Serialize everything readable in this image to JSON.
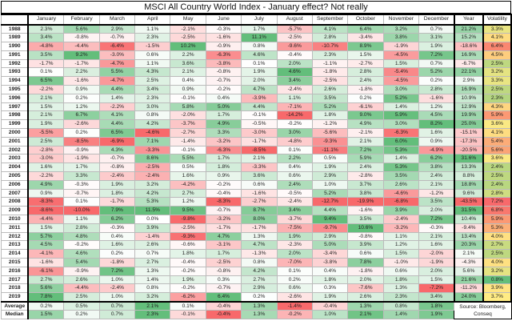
{
  "chart_data": {
    "type": "table",
    "title": "MSCI All Country World Index - January effect? Not really",
    "columns": [
      "",
      "January",
      "February",
      "March",
      "April",
      "May",
      "June",
      "July",
      "August",
      "September",
      "October",
      "November",
      "December",
      "Year",
      "Volatility"
    ],
    "rows": [
      {
        "year": "1988",
        "months": [
          "2.3%",
          "5.6%",
          "2.9%",
          "1.1%",
          "-2.1%",
          "-0.3%",
          "1.7%",
          "-5.7%",
          "4.1%",
          "6.4%",
          "3.2%",
          "0.7%"
        ],
        "annual": "21.2%",
        "volatility": "3.3%"
      },
      {
        "year": "1989",
        "months": [
          "3.4%",
          "-0.8%",
          "-0.7%",
          "2.3%",
          "-2.5%",
          "-1.6%",
          "11.1%",
          "-2.5%",
          "2.8%",
          "-3.4%",
          "3.8%",
          "3.1%"
        ],
        "annual": "15.2%",
        "volatility": "4.1%"
      },
      {
        "year": "1990",
        "months": [
          "-4.8%",
          "-4.4%",
          "-6.4%",
          "-1.5%",
          "10.2%",
          "-0.9%",
          "0.8%",
          "-9.6%",
          "-10.7%",
          "8.9%",
          "-1.9%",
          "1.9%"
        ],
        "annual": "-18.6%",
        "volatility": "6.4%"
      },
      {
        "year": "1991",
        "months": [
          "3.5%",
          "9.2%",
          "-3.0%",
          "0.6%",
          "2.2%",
          "-6.3%",
          "4.6%",
          "-0.4%",
          "2.3%",
          "1.5%",
          "-4.5%",
          "7.2%"
        ],
        "annual": "16.9%",
        "volatility": "4.5%"
      },
      {
        "year": "1992",
        "months": [
          "-1.7%",
          "-1.7%",
          "-4.7%",
          "1.1%",
          "3.6%",
          "-3.8%",
          "0.1%",
          "2.0%",
          "-1.1%",
          "-2.7%",
          "1.5%",
          "0.7%"
        ],
        "annual": "-6.7%",
        "volatility": "2.5%"
      },
      {
        "year": "1993",
        "months": [
          "0.1%",
          "2.2%",
          "5.5%",
          "4.3%",
          "2.1%",
          "-0.8%",
          "1.9%",
          "4.6%",
          "-1.8%",
          "2.8%",
          "-5.4%",
          "5.2%"
        ],
        "annual": "22.1%",
        "volatility": "3.2%"
      },
      {
        "year": "1994",
        "months": [
          "6.5%",
          "-1.6%",
          "-4.7%",
          "2.5%",
          "0.4%",
          "-0.7%",
          "2.0%",
          "3.4%",
          "-2.5%",
          "2.4%",
          "-4.5%",
          "0.2%"
        ],
        "annual": "2.9%",
        "volatility": "3.3%"
      },
      {
        "year": "1995",
        "months": [
          "-2.2%",
          "0.9%",
          "4.4%",
          "3.4%",
          "0.9%",
          "-0.2%",
          "4.7%",
          "-2.4%",
          "2.6%",
          "-1.8%",
          "3.0%",
          "2.8%"
        ],
        "annual": "16.9%",
        "volatility": "2.5%"
      },
      {
        "year": "1996",
        "months": [
          "2.1%",
          "0.2%",
          "1.4%",
          "2.3%",
          "-0.1%",
          "0.4%",
          "-3.9%",
          "1.1%",
          "3.5%",
          "0.2%",
          "5.2%",
          "-1.6%"
        ],
        "annual": "10.9%",
        "volatility": "2.3%"
      },
      {
        "year": "1997",
        "months": [
          "1.5%",
          "1.2%",
          "-2.2%",
          "3.0%",
          "5.8%",
          "5.0%",
          "4.4%",
          "-7.1%",
          "5.2%",
          "-6.1%",
          "1.4%",
          "1.2%"
        ],
        "annual": "12.9%",
        "volatility": "4.3%"
      },
      {
        "year": "1998",
        "months": [
          "2.1%",
          "6.7%",
          "4.1%",
          "0.8%",
          "-2.0%",
          "1.7%",
          "-0.1%",
          "-14.2%",
          "1.8%",
          "9.0%",
          "5.9%",
          "4.5%"
        ],
        "annual": "19.9%",
        "volatility": "5.9%"
      },
      {
        "year": "1999",
        "months": [
          "1.9%",
          "-2.6%",
          "4.4%",
          "4.2%",
          "-3.7%",
          "4.9%",
          "-0.5%",
          "-0.2%",
          "-1.2%",
          "4.9%",
          "3.0%",
          "8.2%"
        ],
        "annual": "25.0%",
        "volatility": "3.6%"
      },
      {
        "year": "2000",
        "months": [
          "-5.5%",
          "0.2%",
          "6.5%",
          "-4.6%",
          "-2.7%",
          "3.3%",
          "-3.0%",
          "3.0%",
          "-5.6%",
          "-2.1%",
          "-6.3%",
          "1.6%"
        ],
        "annual": "-15.1%",
        "volatility": "4.1%"
      },
      {
        "year": "2001",
        "months": [
          "2.5%",
          "-8.5%",
          "-6.9%",
          "7.1%",
          "-1.4%",
          "-3.2%",
          "-1.7%",
          "-4.8%",
          "-9.3%",
          "2.1%",
          "6.0%",
          "0.9%"
        ],
        "annual": "-17.3%",
        "volatility": "5.4%"
      },
      {
        "year": "2002",
        "months": [
          "-2.8%",
          "-0.9%",
          "4.3%",
          "-3.3%",
          "-0.1%",
          "-6.3%",
          "-8.5%",
          "0.1%",
          "-11.1%",
          "7.2%",
          "5.3%",
          "-4.9%"
        ],
        "annual": "-20.5%",
        "volatility": "5.6%"
      },
      {
        "year": "2003",
        "months": [
          "-3.0%",
          "-1.9%",
          "-0.7%",
          "8.6%",
          "5.5%",
          "1.7%",
          "2.1%",
          "2.2%",
          "0.5%",
          "5.9%",
          "1.4%",
          "6.2%"
        ],
        "annual": "31.6%",
        "volatility": "3.6%"
      },
      {
        "year": "2004",
        "months": [
          "1.6%",
          "1.7%",
          "-0.8%",
          "-2.5%",
          "0.5%",
          "1.8%",
          "-3.3%",
          "0.4%",
          "1.9%",
          "2.4%",
          "5.3%",
          "3.8%"
        ],
        "annual": "13.3%",
        "volatility": "2.4%"
      },
      {
        "year": "2005",
        "months": [
          "-2.2%",
          "3.3%",
          "-2.4%",
          "-2.4%",
          "1.6%",
          "0.9%",
          "3.6%",
          "0.6%",
          "2.9%",
          "-2.8%",
          "3.5%",
          "2.4%"
        ],
        "annual": "8.8%",
        "volatility": "2.5%"
      },
      {
        "year": "2006",
        "months": [
          "4.9%",
          "-0.3%",
          "1.9%",
          "3.2%",
          "-4.2%",
          "-0.2%",
          "0.6%",
          "2.4%",
          "1.0%",
          "3.7%",
          "2.6%",
          "2.1%"
        ],
        "annual": "18.8%",
        "volatility": "2.4%"
      },
      {
        "year": "2007",
        "months": [
          "0.9%",
          "-0.7%",
          "1.8%",
          "4.2%",
          "2.7%",
          "-0.4%",
          "-1.6%",
          "-0.5%",
          "5.2%",
          "3.8%",
          "-4.6%",
          "-1.2%"
        ],
        "annual": "9.6%",
        "volatility": "2.8%"
      },
      {
        "year": "2008",
        "months": [
          "-8.3%",
          "0.1%",
          "-1.7%",
          "5.3%",
          "1.2%",
          "-8.3%",
          "-2.7%",
          "-2.4%",
          "-12.7%",
          "-19.9%",
          "-6.8%",
          "3.5%"
        ],
        "annual": "-43.5%",
        "volatility": "7.2%"
      },
      {
        "year": "2009",
        "months": [
          "-8.6%",
          "-10.0%",
          "7.9%",
          "11.5%",
          "9.5%",
          "-0.7%",
          "8.7%",
          "3.4%",
          "4.4%",
          "-1.6%",
          "3.9%",
          "2.0%"
        ],
        "annual": "31.5%",
        "volatility": "6.8%"
      },
      {
        "year": "2010",
        "months": [
          "-4.4%",
          "1.1%",
          "6.2%",
          "0.0%",
          "-9.8%",
          "-3.2%",
          "8.0%",
          "-3.7%",
          "9.4%",
          "3.5%",
          "-2.4%",
          "7.2%"
        ],
        "annual": "10.4%",
        "volatility": "5.9%"
      },
      {
        "year": "2011",
        "months": [
          "1.5%",
          "2.8%",
          "-0.3%",
          "3.9%",
          "-2.5%",
          "-1.7%",
          "-1.7%",
          "-7.5%",
          "-9.7%",
          "10.6%",
          "-3.2%",
          "-0.3%"
        ],
        "annual": "-9.4%",
        "volatility": "5.3%"
      },
      {
        "year": "2012",
        "months": [
          "5.7%",
          "4.8%",
          "0.4%",
          "-1.4%",
          "-9.3%",
          "4.7%",
          "1.3%",
          "1.9%",
          "2.9%",
          "-0.8%",
          "1.1%",
          "2.1%"
        ],
        "annual": "13.4%",
        "volatility": "4.0%"
      },
      {
        "year": "2013",
        "months": [
          "4.5%",
          "-0.2%",
          "1.6%",
          "2.6%",
          "-0.6%",
          "-3.1%",
          "4.7%",
          "-2.3%",
          "5.0%",
          "3.9%",
          "1.2%",
          "1.6%"
        ],
        "annual": "20.3%",
        "volatility": "2.7%"
      },
      {
        "year": "2014",
        "months": [
          "-4.1%",
          "4.6%",
          "0.2%",
          "0.7%",
          "1.8%",
          "1.7%",
          "-1.3%",
          "2.0%",
          "-3.4%",
          "0.6%",
          "1.5%",
          "-2.0%"
        ],
        "annual": "2.1%",
        "volatility": "2.5%"
      },
      {
        "year": "2015",
        "months": [
          "-1.6%",
          "5.4%",
          "-1.8%",
          "2.7%",
          "-0.4%",
          "-2.5%",
          "0.8%",
          "-7.0%",
          "-3.8%",
          "7.8%",
          "-1.0%",
          "-1.9%"
        ],
        "annual": "-4.3%",
        "volatility": "4.0%"
      },
      {
        "year": "2016",
        "months": [
          "-6.1%",
          "-0.9%",
          "7.2%",
          "1.3%",
          "-0.2%",
          "-0.8%",
          "4.2%",
          "0.1%",
          "0.4%",
          "-1.8%",
          "0.6%",
          "2.0%"
        ],
        "annual": "5.6%",
        "volatility": "3.2%"
      },
      {
        "year": "2017",
        "months": [
          "2.7%",
          "2.6%",
          "1.0%",
          "1.4%",
          "1.9%",
          "0.3%",
          "2.7%",
          "0.2%",
          "1.8%",
          "2.0%",
          "1.8%",
          "1.5%"
        ],
        "annual": "21.6%",
        "volatility": "0.8%"
      },
      {
        "year": "2018",
        "months": [
          "5.6%",
          "-4.4%",
          "-2.4%",
          "0.8%",
          "-0.2%",
          "-0.7%",
          "2.9%",
          "0.6%",
          "0.3%",
          "-7.6%",
          "1.3%",
          "-7.2%"
        ],
        "annual": "-11.2%",
        "volatility": "3.9%"
      },
      {
        "year": "2019",
        "months": [
          "7.8%",
          "2.5%",
          "1.0%",
          "3.2%",
          "-6.2%",
          "6.4%",
          "0.2%",
          "-2.6%",
          "1.9%",
          "2.6%",
          "2.3%",
          "3.4%"
        ],
        "annual": "24.0%",
        "volatility": "3.7%"
      }
    ],
    "summary": [
      {
        "label": "Average",
        "months": [
          "0.2%",
          "0.5%",
          "0.7%",
          "2.1%",
          "0.1%",
          "-0.4%",
          "1.3%",
          "-1.4%",
          "-0.4%",
          "1.3%",
          "0.8%",
          "1.8%"
        ]
      },
      {
        "label": "Median",
        "months": [
          "1.5%",
          "0.2%",
          "0.7%",
          "2.3%",
          "-0.1%",
          "-0.4%",
          "1.3%",
          "-0.2%",
          "1.0%",
          "2.1%",
          "1.4%",
          "1.9%"
        ]
      }
    ],
    "source": "Source: Bloomberg, Conseq",
    "colors": {
      "positive": "#63be7b",
      "negative": "#f8696b",
      "mid": "#ffeb84",
      "neutral": "#ffffff"
    }
  }
}
